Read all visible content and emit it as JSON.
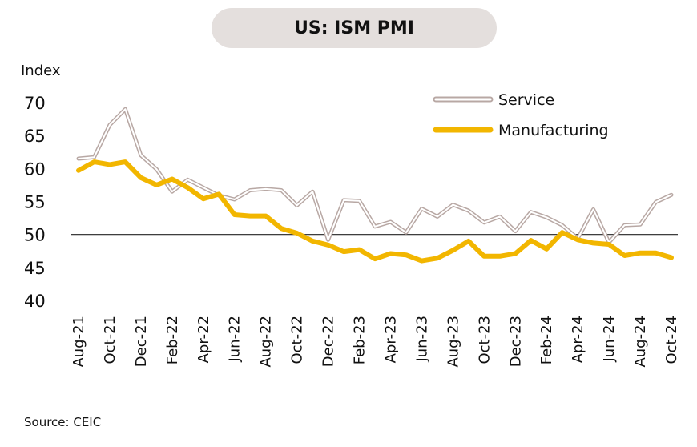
{
  "header": {
    "title": "US: ISM PMI"
  },
  "footer": {
    "source": "Source: CEIC"
  },
  "colors": {
    "service": "#b8a8a4",
    "manufacturing": "#f2b600",
    "reference_line": "#222222"
  },
  "chart_data": {
    "type": "line",
    "title": "US: ISM PMI",
    "ylabel": "Index",
    "xlabel": "",
    "ylim": [
      40,
      70
    ],
    "yticks": [
      40,
      45,
      50,
      55,
      60,
      65,
      70
    ],
    "reference_line": 50,
    "legend_position": "top-right",
    "grid": false,
    "x": [
      "Aug-21",
      "Sep-21",
      "Oct-21",
      "Nov-21",
      "Dec-21",
      "Jan-22",
      "Feb-22",
      "Mar-22",
      "Apr-22",
      "May-22",
      "Jun-22",
      "Jul-22",
      "Aug-22",
      "Sep-22",
      "Oct-22",
      "Nov-22",
      "Dec-22",
      "Jan-23",
      "Feb-23",
      "Mar-23",
      "Apr-23",
      "May-23",
      "Jun-23",
      "Jul-23",
      "Aug-23",
      "Sep-23",
      "Oct-23",
      "Nov-23",
      "Dec-23",
      "Jan-24",
      "Feb-24",
      "Mar-24",
      "Apr-24",
      "May-24",
      "Jun-24",
      "Jul-24",
      "Aug-24",
      "Sep-24",
      "Oct-24"
    ],
    "xtick_labels": [
      "Aug-21",
      "Oct-21",
      "Dec-21",
      "Feb-22",
      "Apr-22",
      "Jun-22",
      "Aug-22",
      "Oct-22",
      "Dec-22",
      "Feb-23",
      "Apr-23",
      "Jun-23",
      "Aug-23",
      "Oct-23",
      "Dec-23",
      "Feb-24",
      "Apr-24",
      "Jun-24",
      "Aug-24",
      "Oct-24"
    ],
    "series": [
      {
        "name": "Service",
        "color": "#b8a8a4",
        "values": [
          61.5,
          61.7,
          66.6,
          69.0,
          62.0,
          59.9,
          56.5,
          58.3,
          57.1,
          55.9,
          55.3,
          56.7,
          56.9,
          56.7,
          54.4,
          56.5,
          49.2,
          55.2,
          55.1,
          51.2,
          51.9,
          50.3,
          53.9,
          52.7,
          54.5,
          53.6,
          51.8,
          52.7,
          50.5,
          53.4,
          52.6,
          51.4,
          49.4,
          53.8,
          48.8,
          51.4,
          51.5,
          54.9,
          56.0
        ]
      },
      {
        "name": "Manufacturing",
        "color": "#f2b600",
        "values": [
          59.7,
          61.0,
          60.6,
          61.0,
          58.6,
          57.5,
          58.4,
          57.1,
          55.4,
          56.1,
          53.0,
          52.8,
          52.8,
          50.9,
          50.2,
          49.0,
          48.4,
          47.4,
          47.7,
          46.3,
          47.1,
          46.9,
          46.0,
          46.4,
          47.6,
          49.0,
          46.7,
          46.7,
          47.1,
          49.1,
          47.8,
          50.3,
          49.2,
          48.7,
          48.5,
          46.8,
          47.2,
          47.2,
          46.5
        ]
      }
    ]
  }
}
